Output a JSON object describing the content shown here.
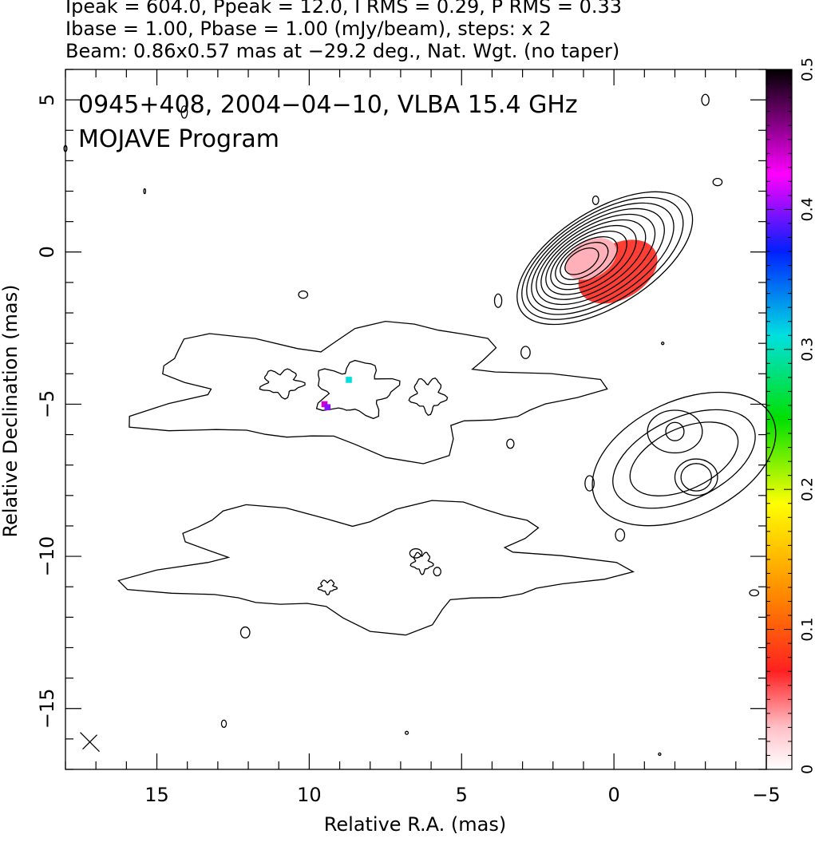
{
  "header": {
    "line1": "Ipeak = 604.0, Ppeak = 12.0, I RMS = 0.29, P RMS = 0.33",
    "line2": "Ibase = 1.00, Pbase = 1.00 (mJy/beam), steps: x 2",
    "line3": "Beam: 0.86x0.57 mas at −29.2 deg., Nat. Wgt. (no taper)"
  },
  "chart_data": {
    "type": "heatmap",
    "annotation_line1": "0945+408, 2004−04−10, VLBA 15.4 GHz",
    "annotation_line2": "MOJAVE Program",
    "xlabel": "Relative R.A. (mas)",
    "ylabel": "Relative Declination (mas)",
    "xlim": [
      18,
      -5
    ],
    "ylim": [
      -17,
      6
    ],
    "xticks": [
      {
        "value": 15,
        "label": "15"
      },
      {
        "value": 10,
        "label": "10"
      },
      {
        "value": 5,
        "label": "5"
      },
      {
        "value": 0,
        "label": "0"
      },
      {
        "value": -5,
        "label": "−5"
      }
    ],
    "yticks": [
      {
        "value": 5,
        "label": "5"
      },
      {
        "value": 0,
        "label": "0"
      },
      {
        "value": -5,
        "label": "−5"
      },
      {
        "value": -10,
        "label": "−10"
      },
      {
        "value": -15,
        "label": "−15"
      }
    ],
    "colorbar": {
      "range": [
        0,
        0.5
      ],
      "ticks": [
        {
          "value": 0,
          "label": "0"
        },
        {
          "value": 0.1,
          "label": "0.1"
        },
        {
          "value": 0.2,
          "label": "0.2"
        },
        {
          "value": 0.3,
          "label": "0.3"
        },
        {
          "value": 0.4,
          "label": "0.4"
        },
        {
          "value": 0.5,
          "label": "0.5"
        }
      ]
    },
    "core": {
      "x": 0.3,
      "y": -0.2,
      "levels": 11
    },
    "components": [
      {
        "x": -2.3,
        "y": -6.8
      },
      {
        "x": 8.5,
        "y": -4.5
      },
      {
        "x": 8.0,
        "y": -10.2
      }
    ],
    "pol_pixels": [
      {
        "x": 8.7,
        "y": -4.2,
        "frac": 0.31
      },
      {
        "x": 9.5,
        "y": -5.0,
        "frac": 0.44
      },
      {
        "x": 9.4,
        "y": -5.1,
        "frac": 0.4
      }
    ],
    "beam_marker": {
      "x": 17.2,
      "y": -16.1
    }
  }
}
